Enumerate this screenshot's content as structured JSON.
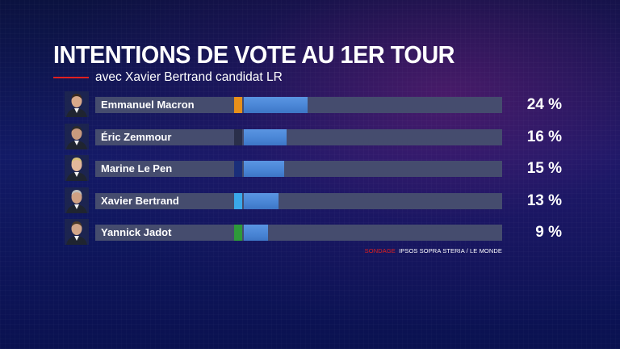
{
  "header": {
    "title": "INTENTIONS DE VOTE AU 1ER TOUR",
    "subtitle": "avec Xavier Bertrand candidat LR"
  },
  "source": {
    "label": "SONDAGE",
    "text": "IPSOS SOPRA STERIA / LE MONDE"
  },
  "colors": {
    "accent_red": "#e0201f",
    "bar_fill": "#4a86d6",
    "bar_track": "#454c6e"
  },
  "chart_data": {
    "type": "bar",
    "orientation": "horizontal",
    "title": "INTENTIONS DE VOTE AU 1ER TOUR",
    "subtitle": "avec Xavier Bertrand candidat LR",
    "xlim": [
      0,
      100
    ],
    "unit": "%",
    "categories": [
      "Emmanuel Macron",
      "Éric Zemmour",
      "Marine Le Pen",
      "Xavier Bertrand",
      "Yannick Jadot"
    ],
    "values": [
      24,
      16,
      15,
      13,
      9
    ],
    "value_labels": [
      "24 %",
      "16 %",
      "15 %",
      "13 %",
      "9 %"
    ],
    "party_colors": [
      "#e8901a",
      "#2a2f4a",
      "#1a2e7a",
      "#3aa8ea",
      "#2e9a3a"
    ],
    "photo_icons": [
      "portrait-macron-icon",
      "portrait-zemmour-icon",
      "portrait-le-pen-icon",
      "portrait-bertrand-icon",
      "portrait-jadot-icon"
    ]
  }
}
